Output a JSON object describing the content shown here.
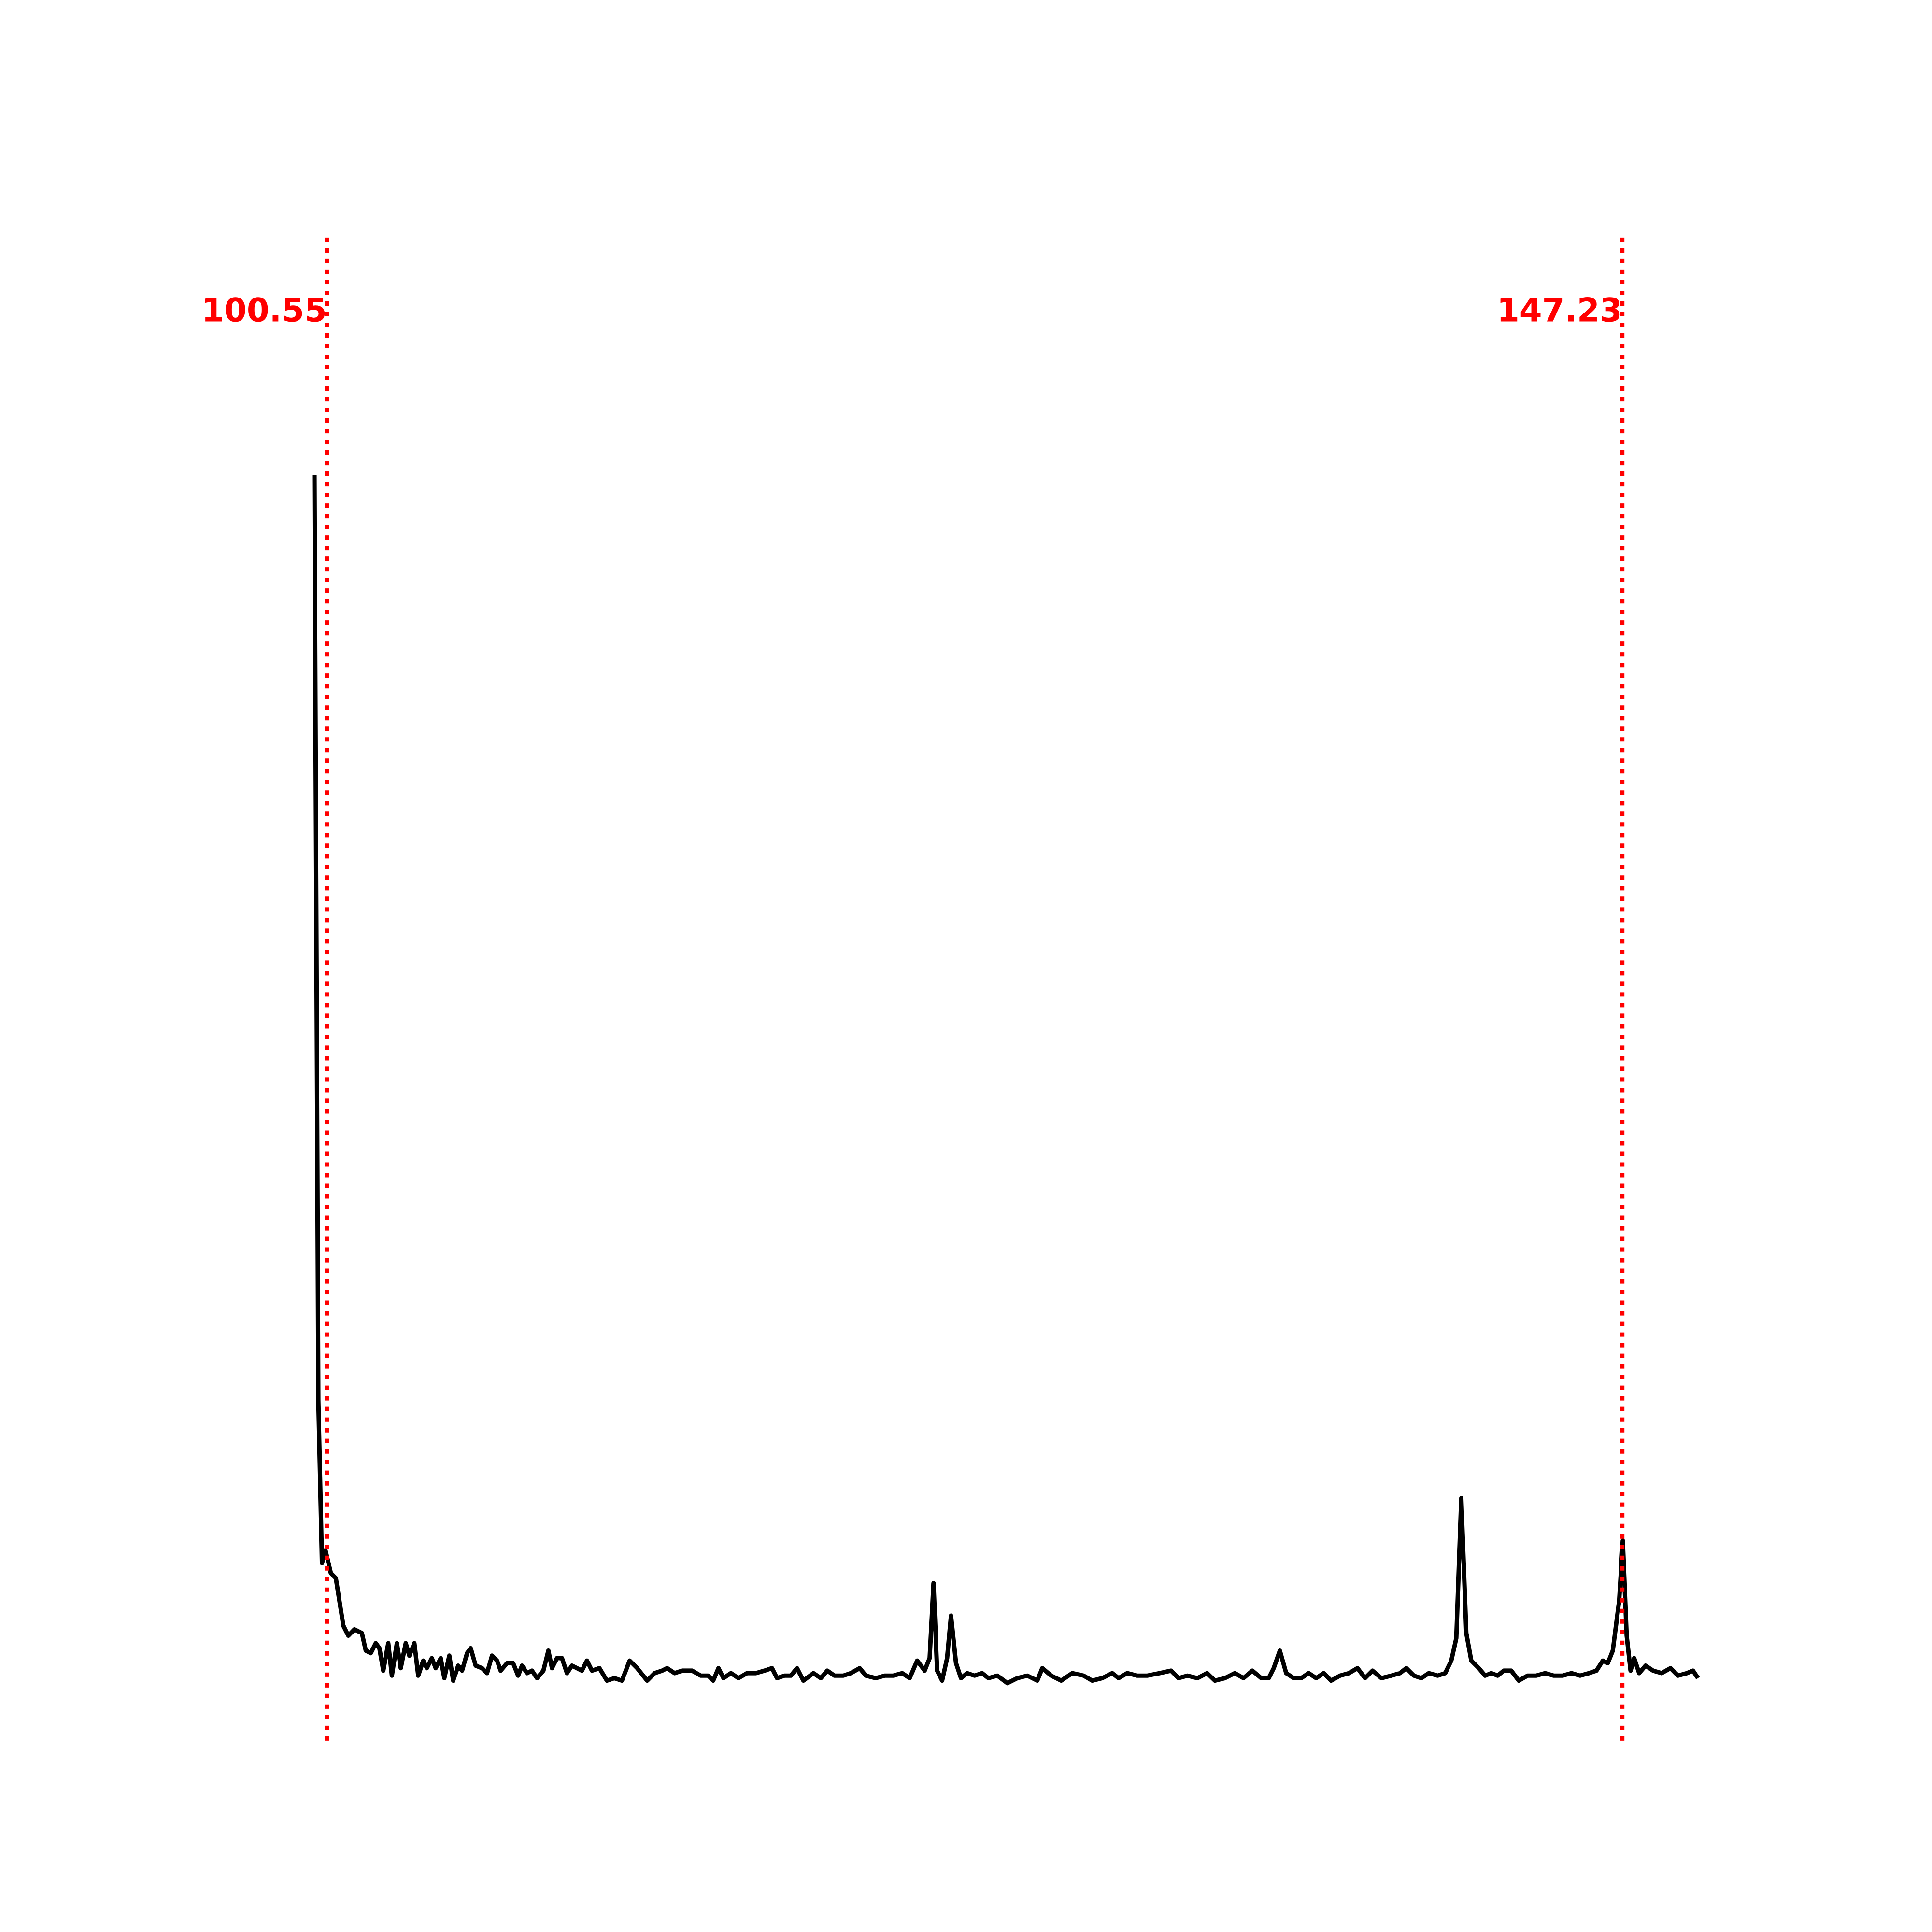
{
  "chart_data": {
    "type": "line",
    "x": [
      100.1,
      100.24,
      100.37,
      100.5,
      100.69,
      100.87,
      101.14,
      101.32,
      101.54,
      101.81,
      101.95,
      102.13,
      102.31,
      102.44,
      102.58,
      102.76,
      102.89,
      103.07,
      103.21,
      103.39,
      103.52,
      103.7,
      103.84,
      104.02,
      104.15,
      104.33,
      104.47,
      104.65,
      104.78,
      104.96,
      105.1,
      105.28,
      105.42,
      105.6,
      105.73,
      105.91,
      106.14,
      106.32,
      106.5,
      106.68,
      106.81,
      107.04,
      107.26,
      107.44,
      107.58,
      107.76,
      107.94,
      108.12,
      108.35,
      108.53,
      108.66,
      108.84,
      109.02,
      109.2,
      109.38,
      109.56,
      109.74,
      109.92,
      110.1,
      110.37,
      110.64,
      110.91,
      111.18,
      111.46,
      111.73,
      112.09,
      112.36,
      112.63,
      112.81,
      113.08,
      113.35,
      113.71,
      114.02,
      114.29,
      114.47,
      114.66,
      114.84,
      115.11,
      115.38,
      115.69,
      116.01,
      116.32,
      116.59,
      116.77,
      117.04,
      117.27,
      117.49,
      117.72,
      118.08,
      118.35,
      118.58,
      118.84,
      119.16,
      119.43,
      119.75,
      119.97,
      120.33,
      120.65,
      120.96,
      121.28,
      121.55,
      121.82,
      122.09,
      122.27,
      122.41,
      122.54,
      122.72,
      122.9,
      123.04,
      123.22,
      123.4,
      123.62,
      123.89,
      124.16,
      124.39,
      124.71,
      125.07,
      125.43,
      125.79,
      126.15,
      126.33,
      126.65,
      127.01,
      127.41,
      127.82,
      128.13,
      128.49,
      128.85,
      129.08,
      129.39,
      129.75,
      130.11,
      130.56,
      130.97,
      131.24,
      131.56,
      131.92,
      132.27,
      132.55,
      132.91,
      133.27,
      133.58,
      133.9,
      134.22,
      134.49,
      134.67,
      134.89,
      135.12,
      135.39,
      135.66,
      135.93,
      136.2,
      136.47,
      136.74,
      137.06,
      137.38,
      137.69,
      137.96,
      138.23,
      138.55,
      138.91,
      139.22,
      139.45,
      139.72,
      139.99,
      140.26,
      140.58,
      140.85,
      141.07,
      141.25,
      141.43,
      141.61,
      141.79,
      142.06,
      142.29,
      142.51,
      142.74,
      142.96,
      143.23,
      143.5,
      143.82,
      144.13,
      144.45,
      144.76,
      145.08,
      145.4,
      145.71,
      146.03,
      146.3,
      146.53,
      146.71,
      146.89,
      147.12,
      147.25,
      147.39,
      147.53,
      147.66,
      147.84,
      148.07,
      148.34,
      148.65,
      148.97,
      149.24,
      149.56,
      149.78,
      149.96
    ],
    "values": [
      1020,
      280,
      150,
      160,
      142,
      138,
      100,
      92,
      97,
      94,
      80,
      78,
      86,
      82,
      64,
      86,
      60,
      86,
      66,
      86,
      76,
      86,
      60,
      72,
      66,
      74,
      66,
      74,
      58,
      76,
      56,
      68,
      64,
      78,
      82,
      68,
      66,
      62,
      76,
      72,
      64,
      70,
      70,
      60,
      68,
      62,
      64,
      58,
      64,
      80,
      66,
      74,
      74,
      62,
      68,
      66,
      64,
      72,
      64,
      66,
      56,
      58,
      56,
      72,
      66,
      56,
      62,
      64,
      66,
      62,
      64,
      64,
      60,
      60,
      56,
      66,
      58,
      62,
      58,
      62,
      62,
      64,
      66,
      58,
      60,
      60,
      66,
      56,
      62,
      58,
      64,
      60,
      60,
      62,
      66,
      60,
      58,
      60,
      60,
      62,
      58,
      72,
      64,
      74,
      134,
      64,
      56,
      74,
      108,
      70,
      58,
      62,
      60,
      62,
      58,
      60,
      54,
      58,
      60,
      56,
      66,
      60,
      56,
      62,
      60,
      56,
      58,
      62,
      58,
      62,
      60,
      60,
      62,
      64,
      58,
      60,
      58,
      62,
      56,
      58,
      62,
      58,
      64,
      58,
      58,
      66,
      80,
      62,
      58,
      58,
      62,
      58,
      62,
      56,
      60,
      62,
      66,
      58,
      64,
      58,
      60,
      62,
      66,
      60,
      58,
      62,
      60,
      62,
      72,
      90,
      202,
      94,
      72,
      66,
      60,
      62,
      60,
      64,
      64,
      56,
      60,
      60,
      62,
      60,
      60,
      62,
      60,
      62,
      64,
      72,
      70,
      80,
      120,
      168,
      92,
      64,
      74,
      62,
      68,
      64,
      62,
      66,
      60,
      62,
      64,
      58
    ],
    "color": "#000000",
    "xlim": [
      97.6,
      152.4
    ],
    "ylim": [
      0,
      1210
    ],
    "vlines": [
      100.55,
      147.23
    ],
    "vline_color": "#ff0000"
  }
}
